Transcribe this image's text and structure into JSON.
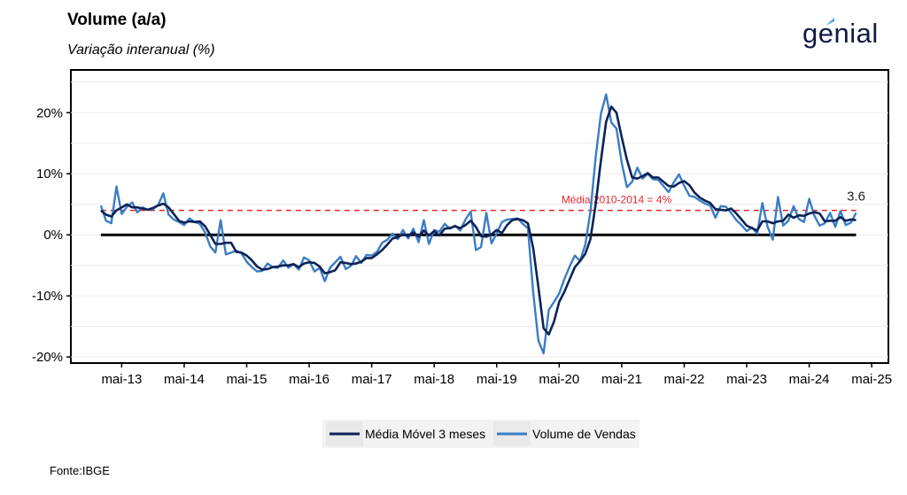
{
  "header": {
    "title": "Volume (a/a)",
    "subtitle": "Variação interanual (%)"
  },
  "logo": {
    "text": "genial",
    "color": "#101a45",
    "accent": "#3ca7d9"
  },
  "source": "Fonte:IBGE",
  "chart_data": {
    "type": "line",
    "title": "Volume (a/a)",
    "subtitle": "Variação interanual (%)",
    "xlabel": "",
    "ylabel": "",
    "ylim": [
      -21,
      27
    ],
    "y_ticks": [
      -20,
      -10,
      0,
      10,
      20
    ],
    "y_tick_labels": [
      "-20%",
      "-10%",
      "0%",
      "10%",
      "20%"
    ],
    "x_ticks": [
      2013.333,
      2014.333,
      2015.333,
      2016.333,
      2017.333,
      2018.333,
      2019.333,
      2020.333,
      2021.333,
      2022.333,
      2023.333,
      2024.333,
      2025.333
    ],
    "x_tick_labels": [
      "mai-13",
      "mai-14",
      "mai-15",
      "mai-16",
      "mai-17",
      "mai-18",
      "mai-19",
      "mai-20",
      "mai-21",
      "mai-22",
      "mai-23",
      "mai-24",
      "mai-25"
    ],
    "xlim": [
      2012.52,
      2025.6
    ],
    "grid": true,
    "legend_position": "bottom",
    "reference_line": {
      "value": 4,
      "label": "Média 2010-2014 = 4%",
      "color": "#e8262b"
    },
    "zero_line": {
      "value": 0,
      "color": "#000000"
    },
    "last_value_label": "3.6",
    "series": [
      {
        "name": "Volume de Vendas",
        "color": "#3a7dc4",
        "points": [
          [
            2013.0,
            4.8
          ],
          [
            2013.083,
            2.3
          ],
          [
            2013.167,
            1.9
          ],
          [
            2013.25,
            7.9
          ],
          [
            2013.333,
            3.4
          ],
          [
            2013.417,
            4.6
          ],
          [
            2013.5,
            5.3
          ],
          [
            2013.583,
            3.7
          ],
          [
            2013.667,
            4.5
          ],
          [
            2013.75,
            4.1
          ],
          [
            2013.833,
            4.2
          ],
          [
            2013.917,
            4.9
          ],
          [
            2014.0,
            6.8
          ],
          [
            2014.083,
            3.3
          ],
          [
            2014.167,
            2.5
          ],
          [
            2014.25,
            2.1
          ],
          [
            2014.333,
            1.6
          ],
          [
            2014.417,
            2.7
          ],
          [
            2014.5,
            2.1
          ],
          [
            2014.583,
            1.8
          ],
          [
            2014.667,
            0.4
          ],
          [
            2014.75,
            -1.9
          ],
          [
            2014.833,
            -2.9
          ],
          [
            2014.917,
            2.4
          ],
          [
            2015.0,
            -3.2
          ],
          [
            2015.083,
            -2.9
          ],
          [
            2015.167,
            -2.6
          ],
          [
            2015.25,
            -3.0
          ],
          [
            2015.333,
            -4.4
          ],
          [
            2015.417,
            -5.3
          ],
          [
            2015.5,
            -6.0
          ],
          [
            2015.583,
            -5.9
          ],
          [
            2015.667,
            -4.7
          ],
          [
            2015.75,
            -5.3
          ],
          [
            2015.833,
            -5.4
          ],
          [
            2015.917,
            -4.2
          ],
          [
            2016.0,
            -5.4
          ],
          [
            2016.083,
            -4.8
          ],
          [
            2016.167,
            -5.7
          ],
          [
            2016.25,
            -3.7
          ],
          [
            2016.333,
            -4.2
          ],
          [
            2016.417,
            -6.0
          ],
          [
            2016.5,
            -5.4
          ],
          [
            2016.583,
            -7.6
          ],
          [
            2016.667,
            -5.4
          ],
          [
            2016.75,
            -4.5
          ],
          [
            2016.833,
            -3.6
          ],
          [
            2016.917,
            -5.6
          ],
          [
            2017.0,
            -5.1
          ],
          [
            2017.083,
            -3.5
          ],
          [
            2017.167,
            -4.6
          ],
          [
            2017.25,
            -3.3
          ],
          [
            2017.333,
            -3.4
          ],
          [
            2017.417,
            -2.8
          ],
          [
            2017.5,
            -1.3
          ],
          [
            2017.583,
            -0.8
          ],
          [
            2017.667,
            0.2
          ],
          [
            2017.75,
            -0.7
          ],
          [
            2017.833,
            0.8
          ],
          [
            2017.917,
            -0.6
          ],
          [
            2018.0,
            1.0
          ],
          [
            2018.083,
            -1.2
          ],
          [
            2018.167,
            2.4
          ],
          [
            2018.25,
            -1.5
          ],
          [
            2018.333,
            0.8
          ],
          [
            2018.417,
            0.5
          ],
          [
            2018.5,
            1.8
          ],
          [
            2018.583,
            1.0
          ],
          [
            2018.667,
            1.5
          ],
          [
            2018.75,
            0.7
          ],
          [
            2018.833,
            2.5
          ],
          [
            2018.917,
            3.8
          ],
          [
            2019.0,
            -2.5
          ],
          [
            2019.083,
            -2.0
          ],
          [
            2019.167,
            3.6
          ],
          [
            2019.25,
            -1.4
          ],
          [
            2019.333,
            0.2
          ],
          [
            2019.417,
            2.1
          ],
          [
            2019.5,
            2.5
          ],
          [
            2019.583,
            2.6
          ],
          [
            2019.667,
            2.7
          ],
          [
            2019.75,
            1.8
          ],
          [
            2019.833,
            1.1
          ],
          [
            2019.917,
            -9.4
          ],
          [
            2020.0,
            -17.3
          ],
          [
            2020.083,
            -19.4
          ],
          [
            2020.167,
            -12.3
          ],
          [
            2020.25,
            -11.0
          ],
          [
            2020.333,
            -9.6
          ],
          [
            2020.417,
            -7.2
          ],
          [
            2020.5,
            -5.2
          ],
          [
            2020.583,
            -3.4
          ],
          [
            2020.667,
            -4.3
          ],
          [
            2020.75,
            -1.6
          ],
          [
            2020.833,
            3.8
          ],
          [
            2020.917,
            12.7
          ],
          [
            2021.0,
            19.8
          ],
          [
            2021.083,
            23.0
          ],
          [
            2021.167,
            18.4
          ],
          [
            2021.25,
            17.4
          ],
          [
            2021.333,
            11.8
          ],
          [
            2021.417,
            7.8
          ],
          [
            2021.5,
            8.7
          ],
          [
            2021.583,
            11.0
          ],
          [
            2021.667,
            9.2
          ],
          [
            2021.75,
            10.0
          ],
          [
            2021.833,
            9.1
          ],
          [
            2021.917,
            9.0
          ],
          [
            2022.0,
            8.0
          ],
          [
            2022.083,
            7.0
          ],
          [
            2022.167,
            8.6
          ],
          [
            2022.25,
            9.9
          ],
          [
            2022.333,
            8.0
          ],
          [
            2022.417,
            6.4
          ],
          [
            2022.5,
            6.2
          ],
          [
            2022.583,
            5.6
          ],
          [
            2022.667,
            5.1
          ],
          [
            2022.75,
            4.8
          ],
          [
            2022.833,
            2.8
          ],
          [
            2022.917,
            4.7
          ],
          [
            2023.0,
            4.6
          ],
          [
            2023.083,
            3.6
          ],
          [
            2023.167,
            2.4
          ],
          [
            2023.25,
            1.6
          ],
          [
            2023.333,
            0.6
          ],
          [
            2023.417,
            1.2
          ],
          [
            2023.5,
            0.2
          ],
          [
            2023.583,
            5.2
          ],
          [
            2023.667,
            1.3
          ],
          [
            2023.75,
            -0.8
          ],
          [
            2023.833,
            6.2
          ],
          [
            2023.917,
            1.5
          ],
          [
            2024.0,
            2.3
          ],
          [
            2024.083,
            4.7
          ],
          [
            2024.167,
            2.6
          ],
          [
            2024.25,
            2.1
          ],
          [
            2024.333,
            5.9
          ],
          [
            2024.417,
            3.1
          ],
          [
            2024.5,
            1.5
          ],
          [
            2024.583,
            1.9
          ],
          [
            2024.667,
            3.6
          ],
          [
            2024.75,
            1.3
          ],
          [
            2024.833,
            3.9
          ],
          [
            2024.917,
            1.6
          ],
          [
            2025.0,
            2.0
          ],
          [
            2025.083,
            3.6
          ]
        ]
      },
      {
        "name": "Média Móvel 3 meses",
        "color": "#0d2357",
        "points": [
          [
            2013.0,
            4.0
          ],
          [
            2013.083,
            3.3
          ],
          [
            2013.167,
            3.0
          ],
          [
            2013.25,
            4.0
          ],
          [
            2013.333,
            4.5
          ],
          [
            2013.417,
            5.0
          ],
          [
            2013.5,
            4.5
          ],
          [
            2013.583,
            4.5
          ],
          [
            2013.667,
            4.3
          ],
          [
            2013.75,
            4.1
          ],
          [
            2013.833,
            4.4
          ],
          [
            2013.917,
            4.8
          ],
          [
            2014.0,
            5.1
          ],
          [
            2014.083,
            4.5
          ],
          [
            2014.167,
            3.4
          ],
          [
            2014.25,
            2.3
          ],
          [
            2014.333,
            2.0
          ],
          [
            2014.417,
            2.2
          ],
          [
            2014.5,
            2.1
          ],
          [
            2014.583,
            2.2
          ],
          [
            2014.667,
            1.4
          ],
          [
            2014.75,
            0.0
          ],
          [
            2014.833,
            -1.5
          ],
          [
            2014.917,
            -1.5
          ],
          [
            2015.0,
            -1.3
          ],
          [
            2015.083,
            -1.3
          ],
          [
            2015.167,
            -2.8
          ],
          [
            2015.25,
            -2.9
          ],
          [
            2015.333,
            -3.4
          ],
          [
            2015.417,
            -4.2
          ],
          [
            2015.5,
            -5.2
          ],
          [
            2015.583,
            -5.7
          ],
          [
            2015.667,
            -5.6
          ],
          [
            2015.75,
            -5.3
          ],
          [
            2015.833,
            -5.2
          ],
          [
            2015.917,
            -5.0
          ],
          [
            2016.0,
            -5.0
          ],
          [
            2016.083,
            -4.8
          ],
          [
            2016.167,
            -5.3
          ],
          [
            2016.25,
            -4.7
          ],
          [
            2016.333,
            -4.5
          ],
          [
            2016.417,
            -4.6
          ],
          [
            2016.5,
            -5.2
          ],
          [
            2016.583,
            -6.3
          ],
          [
            2016.667,
            -6.1
          ],
          [
            2016.75,
            -5.8
          ],
          [
            2016.833,
            -4.5
          ],
          [
            2016.917,
            -4.6
          ],
          [
            2017.0,
            -4.8
          ],
          [
            2017.083,
            -4.7
          ],
          [
            2017.167,
            -4.4
          ],
          [
            2017.25,
            -3.8
          ],
          [
            2017.333,
            -3.8
          ],
          [
            2017.417,
            -3.2
          ],
          [
            2017.5,
            -2.5
          ],
          [
            2017.583,
            -1.6
          ],
          [
            2017.667,
            -0.6
          ],
          [
            2017.75,
            -0.4
          ],
          [
            2017.833,
            0.1
          ],
          [
            2017.917,
            -0.2
          ],
          [
            2018.0,
            0.4
          ],
          [
            2018.083,
            -0.3
          ],
          [
            2018.167,
            0.7
          ],
          [
            2018.25,
            -0.1
          ],
          [
            2018.333,
            0.6
          ],
          [
            2018.417,
            -0.1
          ],
          [
            2018.5,
            1.0
          ],
          [
            2018.583,
            1.1
          ],
          [
            2018.667,
            1.4
          ],
          [
            2018.75,
            1.1
          ],
          [
            2018.833,
            1.6
          ],
          [
            2018.917,
            2.3
          ],
          [
            2019.0,
            1.3
          ],
          [
            2019.083,
            -0.2
          ],
          [
            2019.167,
            -0.3
          ],
          [
            2019.25,
            0.1
          ],
          [
            2019.333,
            0.8
          ],
          [
            2019.417,
            0.3
          ],
          [
            2019.5,
            1.6
          ],
          [
            2019.583,
            2.4
          ],
          [
            2019.667,
            2.6
          ],
          [
            2019.75,
            2.4
          ],
          [
            2019.833,
            1.9
          ],
          [
            2019.917,
            -2.2
          ],
          [
            2020.0,
            -8.5
          ],
          [
            2020.083,
            -15.3
          ],
          [
            2020.167,
            -16.3
          ],
          [
            2020.25,
            -14.2
          ],
          [
            2020.333,
            -11.0
          ],
          [
            2020.417,
            -9.3
          ],
          [
            2020.5,
            -7.3
          ],
          [
            2020.583,
            -5.3
          ],
          [
            2020.667,
            -4.3
          ],
          [
            2020.75,
            -3.1
          ],
          [
            2020.833,
            -0.7
          ],
          [
            2020.917,
            5.0
          ],
          [
            2021.0,
            12.1
          ],
          [
            2021.083,
            18.5
          ],
          [
            2021.167,
            21.0
          ],
          [
            2021.25,
            20.0
          ],
          [
            2021.333,
            16.0
          ],
          [
            2021.417,
            12.3
          ],
          [
            2021.5,
            9.4
          ],
          [
            2021.583,
            9.2
          ],
          [
            2021.667,
            9.6
          ],
          [
            2021.75,
            10.1
          ],
          [
            2021.833,
            9.4
          ],
          [
            2021.917,
            9.4
          ],
          [
            2022.0,
            8.7
          ],
          [
            2022.083,
            8.0
          ],
          [
            2022.167,
            7.9
          ],
          [
            2022.25,
            8.5
          ],
          [
            2022.333,
            8.8
          ],
          [
            2022.417,
            8.1
          ],
          [
            2022.5,
            6.9
          ],
          [
            2022.583,
            6.1
          ],
          [
            2022.667,
            5.6
          ],
          [
            2022.75,
            5.2
          ],
          [
            2022.833,
            4.2
          ],
          [
            2022.917,
            4.1
          ],
          [
            2023.0,
            4.0
          ],
          [
            2023.083,
            4.3
          ],
          [
            2023.167,
            3.5
          ],
          [
            2023.25,
            2.5
          ],
          [
            2023.333,
            1.5
          ],
          [
            2023.417,
            1.1
          ],
          [
            2023.5,
            0.7
          ],
          [
            2023.583,
            2.2
          ],
          [
            2023.667,
            2.2
          ],
          [
            2023.75,
            1.9
          ],
          [
            2023.833,
            2.2
          ],
          [
            2023.917,
            2.3
          ],
          [
            2024.0,
            3.3
          ],
          [
            2024.083,
            2.8
          ],
          [
            2024.167,
            3.2
          ],
          [
            2024.25,
            3.1
          ],
          [
            2024.333,
            3.5
          ],
          [
            2024.417,
            3.7
          ],
          [
            2024.5,
            3.5
          ],
          [
            2024.583,
            2.2
          ],
          [
            2024.667,
            2.3
          ],
          [
            2024.75,
            2.3
          ],
          [
            2024.833,
            2.9
          ],
          [
            2024.917,
            2.3
          ],
          [
            2025.0,
            2.5
          ],
          [
            2025.083,
            2.4
          ]
        ]
      }
    ]
  }
}
